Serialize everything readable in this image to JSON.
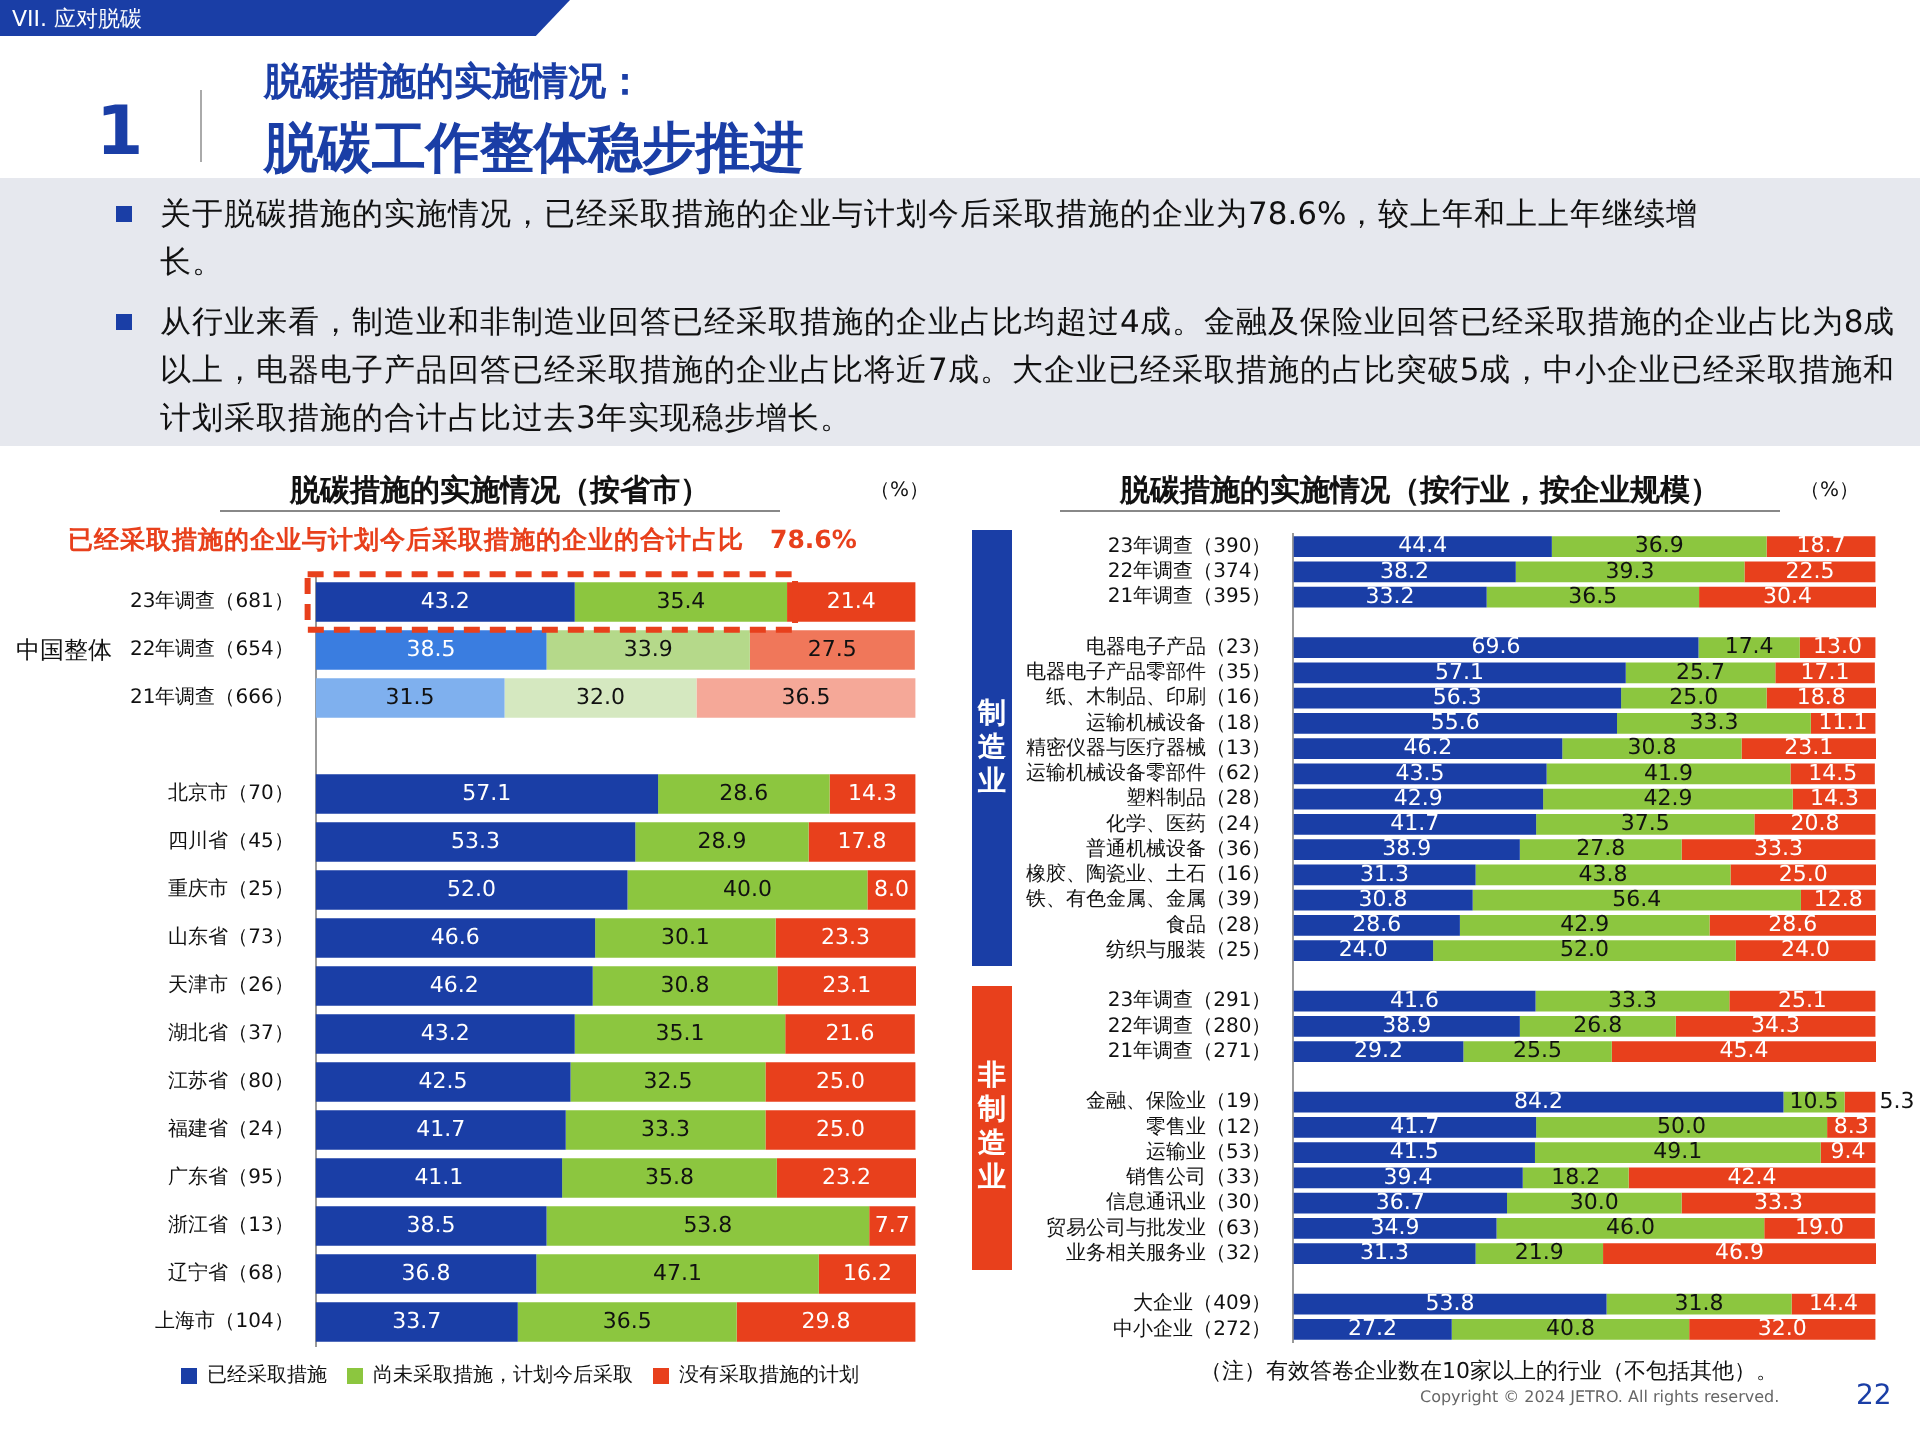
{
  "chart_data": [
    {
      "type": "other",
      "title": "脱碳工作整体稳步推进",
      "subtitle": "脱碳措施的实施情况：",
      "annotations": [
        "VII. 应对脱碳",
        "1",
        "关于脱碳措施的实施情况，已经采取措施的企业与计划今后采取措施的企业为78.6%，较上年和上上年继续增长。",
        "从行业来看，制造业和非制造业回答已经采取措施的企业占比均超过4成。金融及保险业回答已经采取措施的企业占比为8成以上，电器电子产品回答已经采取措施的企业占比将近7成。大企业已经采取措施的占比突破5成，中小企业已经采取措施和计划采取措施的合计占比过去3年实现稳步增长。",
        "22"
      ]
    },
    {
      "type": "bar",
      "orientation": "horizontal",
      "stacked": true,
      "tick_labels": "y",
      "legend": "bottom",
      "title": "脱碳措施的实施情况（按省市）",
      "annotations": [
        "（%）",
        "已经采取措施的企业与计划今后采取措施的企业的合计占比　78.6%",
        "中国整体"
      ],
      "xlim": [
        0,
        100.1
      ],
      "categories": [
        "23年调查（681）",
        "22年调查（654）",
        "21年调查（666）",
        null,
        "北京市（70）",
        "四川省（45）",
        "重庆市（25）",
        "山东省（73）",
        "天津市（26）",
        "湖北省（37）",
        "江苏省（80）",
        "福建省（24）",
        "广东省（95）",
        "浙江省（13）",
        "辽宁省（68）",
        "上海市（104）"
      ],
      "series": [
        {
          "name": "已经采取措施",
          "color": "#1a3ea6",
          "colors": [
            "#1a3ea6",
            "#3a7de0",
            "#7fb0ee",
            null,
            "#1a3ea6",
            "#1a3ea6",
            "#1a3ea6",
            "#1a3ea6",
            "#1a3ea6",
            "#1a3ea6",
            "#1a3ea6",
            "#1a3ea6",
            "#1a3ea6",
            "#1a3ea6",
            "#1a3ea6",
            "#1a3ea6"
          ],
          "values": [
            43.2,
            38.5,
            31.5,
            null,
            57.1,
            53.3,
            52.0,
            46.6,
            46.2,
            43.2,
            42.5,
            41.7,
            41.1,
            38.5,
            36.8,
            33.7
          ],
          "value_labels": [
            "43.2",
            "38.5",
            "31.5",
            null,
            "57.1",
            "53.3",
            "52.0",
            "46.6",
            "46.2",
            "43.2",
            "42.5",
            "41.7",
            "41.1",
            "38.5",
            "36.8",
            "33.7"
          ]
        },
        {
          "name": "尚未采取措施，计划今后采取",
          "color": "#8cc63f",
          "colors": [
            "#8cc63f",
            "#b5d98a",
            "#d5e8c0",
            null,
            "#8cc63f",
            "#8cc63f",
            "#8cc63f",
            "#8cc63f",
            "#8cc63f",
            "#8cc63f",
            "#8cc63f",
            "#8cc63f",
            "#8cc63f",
            "#8cc63f",
            "#8cc63f",
            "#8cc63f"
          ],
          "values": [
            35.4,
            33.9,
            32.0,
            null,
            28.6,
            28.9,
            40.0,
            30.1,
            30.8,
            35.1,
            32.5,
            33.3,
            35.8,
            53.8,
            47.1,
            36.5
          ],
          "value_labels": [
            "35.4",
            "33.9",
            "32.0",
            null,
            "28.6",
            "28.9",
            "40.0",
            "30.1",
            "30.8",
            "35.1",
            "32.5",
            "33.3",
            "35.8",
            "53.8",
            "47.1",
            "36.5"
          ]
        },
        {
          "name": "没有采取措施的计划",
          "color": "#e8401c",
          "colors": [
            "#e8401c",
            "#f0775a",
            "#f5a898",
            null,
            "#e8401c",
            "#e8401c",
            "#e8401c",
            "#e8401c",
            "#e8401c",
            "#e8401c",
            "#e8401c",
            "#e8401c",
            "#e8401c",
            "#e8401c",
            "#e8401c",
            "#e8401c"
          ],
          "values": [
            21.4,
            27.5,
            36.5,
            null,
            14.3,
            17.8,
            8.0,
            23.3,
            23.1,
            21.6,
            25.0,
            25.0,
            23.2,
            7.7,
            16.2,
            29.8
          ],
          "value_labels": [
            "21.4",
            "27.5",
            "36.5",
            null,
            "14.3",
            "17.8",
            "8.0",
            "23.3",
            "23.1",
            "21.6",
            "25.0",
            "25.0",
            "23.2",
            "7.7",
            "16.2",
            "29.8"
          ]
        }
      ]
    },
    {
      "type": "bar",
      "orientation": "horizontal",
      "stacked": true,
      "tick_labels": "y",
      "title": "脱碳措施的实施情况（按行业，按企业规模）",
      "annotations": [
        "（%）",
        "制造业",
        "非制造业",
        "（注）有效答卷企业数在10家以上的行业（不包括其他）。",
        "Copyright © 2024 JETRO. All rights reserved."
      ],
      "xlim": [
        0,
        100.1
      ],
      "categories": [
        "23年调查（390）",
        "22年调查（374）",
        "21年调查（395）",
        null,
        "电器电子产品（23）",
        "电器电子产品零部件（35）",
        "纸、木制品、印刷（16）",
        "运输机械设备（18）",
        "精密仪器与医疗器械（13）",
        "运输机械设备零部件（62）",
        "塑料制品（28）",
        "化学、医药（24）",
        "普通机械设备（36）",
        "橡胶、陶瓷业、土石（16）",
        "铁、有色金属、金属（39）",
        "食品（28）",
        "纺织与服装（25）",
        null,
        "23年调查（291）",
        "22年调查（280）",
        "21年调查（271）",
        null,
        "金融、保险业（19）",
        "零售业（12）",
        "运输业（53）",
        "销售公司（33）",
        "信息通讯业（30）",
        "贸易公司与批发业（63）",
        "业务相关服务业（32）",
        null,
        "大企业（409）",
        "中小企业（272）"
      ],
      "series": [
        {
          "color": "#1a3ea6",
          "values": [
            44.4,
            38.2,
            33.2,
            null,
            69.6,
            57.1,
            56.3,
            55.6,
            46.2,
            43.5,
            42.9,
            41.7,
            38.9,
            31.3,
            30.8,
            28.6,
            24.0,
            null,
            41.6,
            38.9,
            29.2,
            null,
            84.2,
            41.7,
            41.5,
            39.4,
            36.7,
            34.9,
            31.3,
            null,
            53.8,
            27.2
          ],
          "value_labels": [
            "44.4",
            "38.2",
            "33.2",
            null,
            "69.6",
            "57.1",
            "56.3",
            "55.6",
            "46.2",
            "43.5",
            "42.9",
            "41.7",
            "38.9",
            "31.3",
            "30.8",
            "28.6",
            "24.0",
            null,
            "41.6",
            "38.9",
            "29.2",
            null,
            "84.2",
            "41.7",
            "41.5",
            "39.4",
            "36.7",
            "34.9",
            "31.3",
            null,
            "53.8",
            "27.2"
          ]
        },
        {
          "color": "#8cc63f",
          "values": [
            36.9,
            39.3,
            36.5,
            null,
            17.4,
            25.7,
            25.0,
            33.3,
            30.8,
            41.9,
            42.9,
            37.5,
            27.8,
            43.8,
            56.4,
            42.9,
            52.0,
            null,
            33.3,
            26.8,
            25.5,
            null,
            10.5,
            50.0,
            49.1,
            18.2,
            30.0,
            46.0,
            21.9,
            null,
            31.8,
            40.8
          ],
          "value_labels": [
            "36.9",
            "39.3",
            "36.5",
            null,
            "17.4",
            "25.7",
            "25.0",
            "33.3",
            "30.8",
            "41.9",
            "42.9",
            "37.5",
            "27.8",
            "43.8",
            "56.4",
            "42.9",
            "52.0",
            null,
            "33.3",
            "26.8",
            "25.5",
            null,
            "10.5",
            "50.0",
            "49.1",
            "18.2",
            "30.0",
            "46.0",
            "21.9",
            null,
            "31.8",
            "40.8"
          ]
        },
        {
          "color": "#e8401c",
          "values": [
            18.7,
            22.5,
            30.4,
            null,
            13.0,
            17.1,
            18.8,
            11.1,
            23.1,
            14.5,
            14.3,
            20.8,
            33.3,
            25.0,
            12.8,
            28.6,
            24.0,
            null,
            25.1,
            34.3,
            45.4,
            null,
            5.3,
            8.3,
            9.4,
            42.4,
            33.3,
            19.0,
            46.9,
            null,
            14.4,
            32.0
          ],
          "value_labels": [
            "18.7",
            "22.5",
            "30.4",
            null,
            "13.0",
            "17.1",
            "18.8",
            "11.1",
            "23.1",
            "14.5",
            "14.3",
            "20.8",
            "33.3",
            "25.0",
            "12.8",
            "28.6",
            "24.0",
            null,
            "25.1",
            "34.3",
            "45.4",
            null,
            "5.3",
            "8.3",
            "9.4",
            "42.4",
            "33.3",
            "19.0",
            "46.9",
            null,
            "14.4",
            "32.0"
          ]
        }
      ]
    }
  ]
}
